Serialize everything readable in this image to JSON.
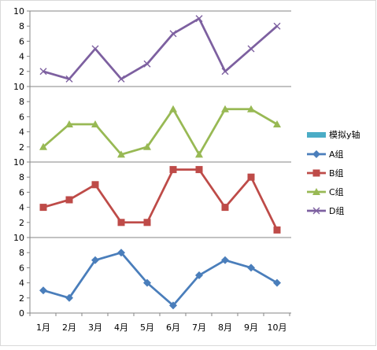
{
  "chart_data": {
    "type": "line",
    "categories": [
      "1月",
      "2月",
      "3月",
      "4月",
      "5月",
      "6月",
      "7月",
      "8月",
      "9月",
      "10月"
    ],
    "yticks": [
      0,
      2,
      4,
      6,
      8,
      10
    ],
    "ylim": [
      0,
      10
    ],
    "grid": false,
    "legend_position": "right",
    "series": [
      {
        "name": "A组",
        "color": "#4a7ebb",
        "marker": "diamond",
        "values": [
          3,
          2,
          7,
          8,
          4,
          1,
          5,
          7,
          6,
          4
        ]
      },
      {
        "name": "B组",
        "color": "#be4b48",
        "marker": "square",
        "values": [
          4,
          5,
          7,
          2,
          2,
          9,
          9,
          4,
          8,
          1
        ]
      },
      {
        "name": "C组",
        "color": "#98b954",
        "marker": "triangle",
        "values": [
          2,
          5,
          5,
          1,
          2,
          7,
          1,
          7,
          7,
          5
        ]
      },
      {
        "name": "D组",
        "color": "#7d60a0",
        "marker": "x",
        "values": [
          2,
          1,
          5,
          1,
          3,
          7,
          9,
          2,
          5,
          8
        ]
      }
    ],
    "axis_legend": {
      "name": "模拟y轴",
      "color": "#4bacc6"
    }
  }
}
